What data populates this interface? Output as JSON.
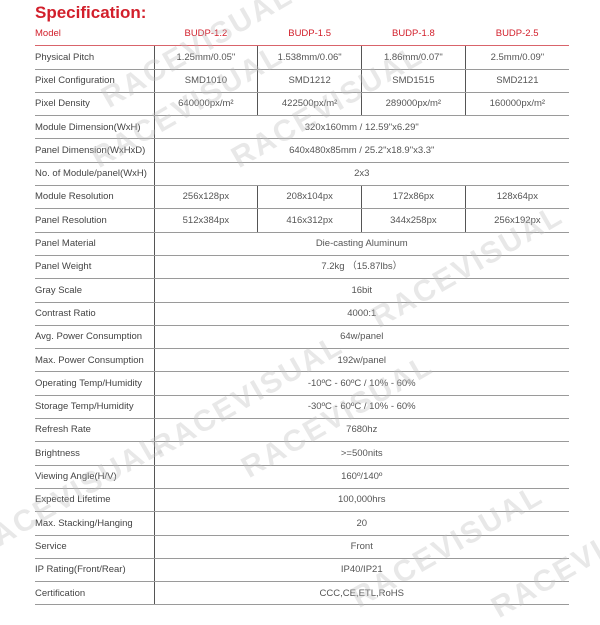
{
  "title": "Specification:",
  "watermark": "RACEVISUAL",
  "header": {
    "label": "Model",
    "models": [
      "BUDP-1.2",
      "BUDP-1.5",
      "BUDP-1.8",
      "BUDP-2.5"
    ]
  },
  "rows": [
    {
      "label": "Physical Pitch",
      "values": [
        "1.25mm/0.05\"",
        "1.538mm/0.06\"",
        "1.86mm/0.07\"",
        "2.5mm/0.09\""
      ]
    },
    {
      "label": "Pixel Configuration",
      "values": [
        "SMD1010",
        "SMD1212",
        "SMD1515",
        "SMD2121"
      ]
    },
    {
      "label": "Pixel Density",
      "values": [
        "640000px/m²",
        "422500px/m²",
        "289000px/m²",
        "160000px/m²"
      ]
    },
    {
      "label": "Module Dimension(WxH)",
      "values": [
        "320x160mm / 12.59\"x6.29\""
      ]
    },
    {
      "label": "Panel Dimension(WxHxD)",
      "values": [
        "640x480x85mm / 25.2\"x18.9\"x3.3\""
      ]
    },
    {
      "label": "No. of Module/panel(WxH)",
      "values": [
        "2x3"
      ]
    },
    {
      "label": "Module Resolution",
      "values": [
        "256x128px",
        "208x104px",
        "172x86px",
        "128x64px"
      ]
    },
    {
      "label": "Panel Resolution",
      "values": [
        "512x384px",
        "416x312px",
        "344x258px",
        "256x192px"
      ]
    },
    {
      "label": "Panel Material",
      "values": [
        "Die-casting Aluminum"
      ]
    },
    {
      "label": "Panel Weight",
      "values": [
        "7.2kg （15.87lbs）"
      ]
    },
    {
      "label": "Gray Scale",
      "values": [
        "16bit"
      ]
    },
    {
      "label": "Contrast Ratio",
      "values": [
        "4000:1"
      ]
    },
    {
      "label": "Avg. Power Consumption",
      "values": [
        "64w/panel"
      ]
    },
    {
      "label": "Max. Power Consumption",
      "values": [
        "192w/panel"
      ]
    },
    {
      "label": "Operating Temp/Humidity",
      "values": [
        "-10ºC - 60ºC / 10% - 60%"
      ]
    },
    {
      "label": "Storage Temp/Humidity",
      "values": [
        "-30ºC - 60ºC / 10% - 60%"
      ]
    },
    {
      "label": "Refresh Rate",
      "values": [
        "7680hz"
      ]
    },
    {
      "label": "Brightness",
      "values": [
        ">=500nits"
      ]
    },
    {
      "label": "Viewing Angle(H/V)",
      "values": [
        "160º/140º"
      ]
    },
    {
      "label": "Expected Lifetime",
      "values": [
        "100,000hrs"
      ]
    },
    {
      "label": "Max. Stacking/Hanging",
      "values": [
        "20"
      ]
    },
    {
      "label": "Service",
      "values": [
        "Front"
      ]
    },
    {
      "label": "IP Rating(Front/Rear)",
      "values": [
        "IP40/IP21"
      ]
    },
    {
      "label": "Certification",
      "values": [
        "CCC,CE,ETL,RoHS"
      ]
    }
  ]
}
